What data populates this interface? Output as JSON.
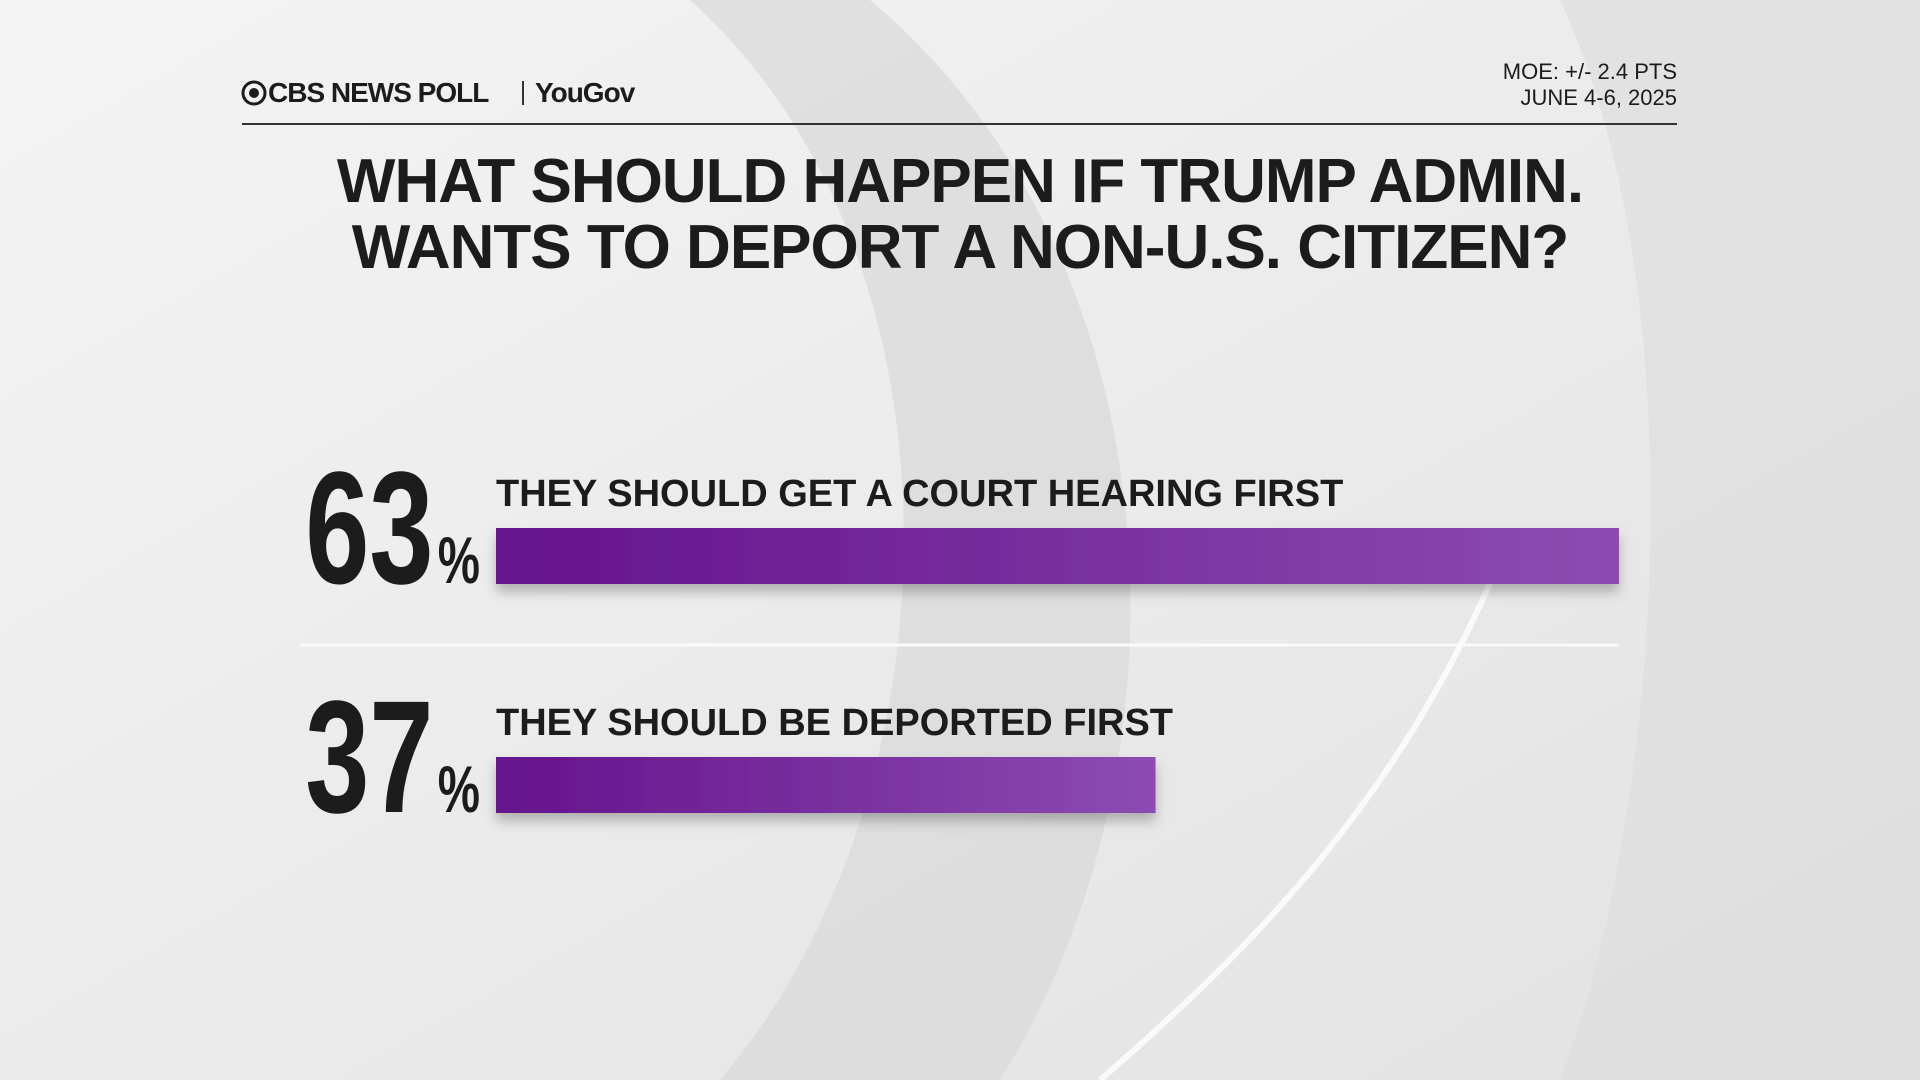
{
  "chart_data": {
    "type": "bar",
    "orientation": "horizontal",
    "source": "CBS NEWS POLL",
    "partner": "YouGov",
    "moe": "MOE: +/- 2.4 PTS",
    "dates": "JUNE 4-6, 2025",
    "title": [
      "WHAT SHOULD HAPPEN IF TRUMP ADMIN.",
      "WANTS TO DEPORT A NON-U.S. CITIZEN?"
    ],
    "categories": [
      "THEY SHOULD GET A COURT HEARING FIRST",
      "THEY SHOULD BE DEPORTED FIRST"
    ],
    "values": [
      63,
      37
    ],
    "value_labels": [
      "63%",
      "37%"
    ],
    "color": [
      "#65138c",
      "#8d4bb2"
    ]
  }
}
